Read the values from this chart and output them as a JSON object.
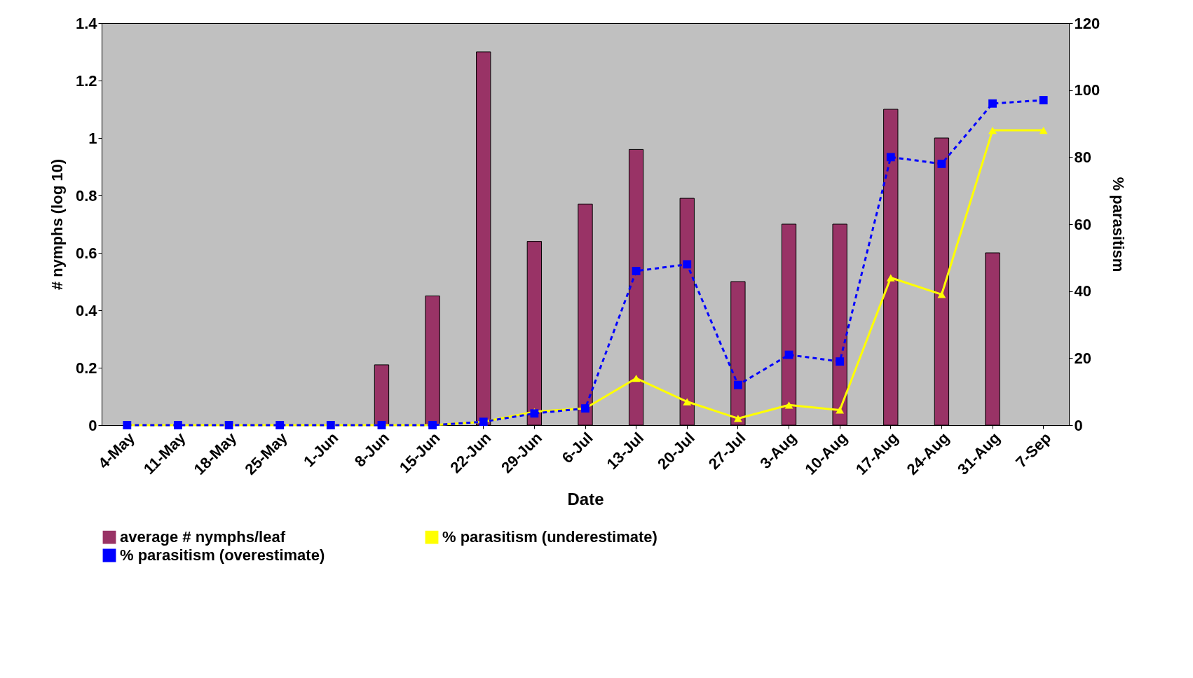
{
  "chart_data": {
    "type": "bar",
    "xlabel": "Date",
    "ylabel": "# nymphs (log 10)",
    "y2label": "% parasitism",
    "categories": [
      "4-May",
      "11-May",
      "18-May",
      "25-May",
      "1-Jun",
      "8-Jun",
      "15-Jun",
      "22-Jun",
      "29-Jun",
      "6-Jul",
      "13-Jul",
      "20-Jul",
      "27-Jul",
      "3-Aug",
      "10-Aug",
      "17-Aug",
      "24-Aug",
      "31-Aug",
      "7-Sep"
    ],
    "series": [
      {
        "name": "average # nymphs/leaf",
        "color": "#993366",
        "values": [
          null,
          null,
          null,
          null,
          null,
          0.21,
          0.45,
          1.3,
          0.64,
          0.77,
          0.96,
          0.79,
          0.5,
          0.7,
          0.7,
          1.1,
          1.0,
          0.6,
          null
        ]
      },
      {
        "name": "% parasitism (underestimate)",
        "type": "line",
        "axis": "y2",
        "color": "#ffff00",
        "marker": "triangle",
        "line_style": "solid",
        "values": [
          0,
          0,
          0,
          0,
          0,
          0,
          0,
          1,
          4,
          5,
          14,
          7,
          2,
          6,
          4.5,
          44,
          39,
          88,
          88
        ]
      },
      {
        "name": "% parasitism (overestimate)",
        "type": "line",
        "axis": "y2",
        "color": "#0000ff",
        "marker": "square",
        "line_style": "dashed",
        "values": [
          0,
          0,
          0,
          0,
          0,
          0,
          0,
          1,
          3.5,
          5,
          46,
          48,
          12,
          21,
          19,
          80,
          78,
          96,
          97
        ]
      }
    ],
    "ylim": [
      0,
      1.4
    ],
    "yticks": [
      0,
      0.2,
      0.4,
      0.6,
      0.8,
      1,
      1.2,
      1.4
    ],
    "y2lim": [
      0,
      120
    ],
    "y2ticks": [
      0,
      20,
      40,
      60,
      80,
      100,
      120
    ],
    "grid": false,
    "legend": "bottom"
  }
}
